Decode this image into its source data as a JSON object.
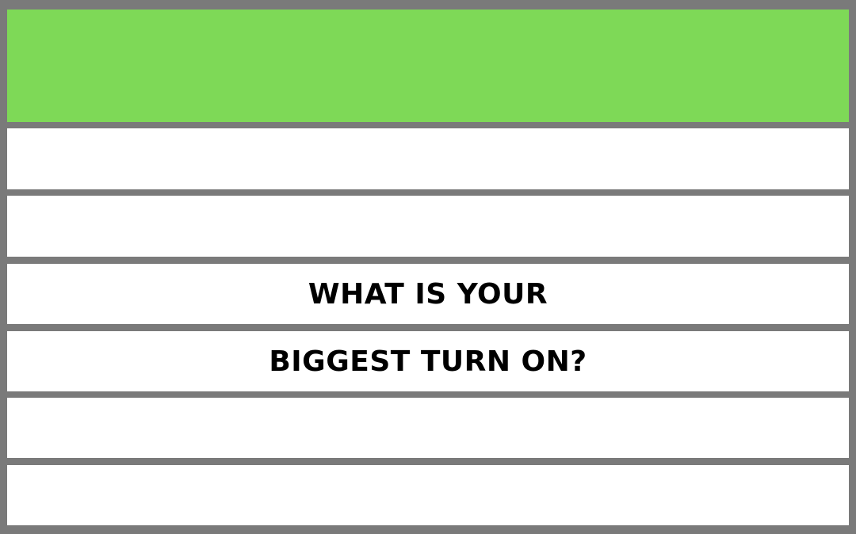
{
  "colors": {
    "header": "#7ed957",
    "grid_line": "#7a7a7a",
    "row_background": "#ffffff",
    "text": "#000000"
  },
  "question": {
    "line1": "WHAT IS YOUR",
    "line2": "BIGGEST TURN ON?"
  }
}
